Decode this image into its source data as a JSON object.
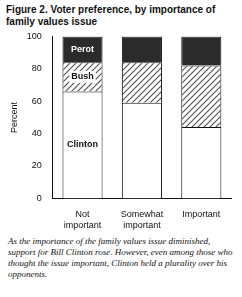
{
  "chart_data": {
    "type": "bar",
    "title": "Figure 2. Voter preference, by importance of family values issue",
    "y_label": "Percent",
    "caption": "As the importance of the family values issue diminished, support for Bill Clinton rose. However, even among those who thought the issue important, Clinton held a plurality over his opponents.",
    "categories": [
      "Not important",
      "Somewhat important",
      "Important"
    ],
    "series": [
      {
        "name": "Clinton",
        "color": "#ffffff",
        "values": [
          66,
          59,
          44
        ]
      },
      {
        "name": "Bush",
        "color": "#555555",
        "values": [
          18,
          25,
          38
        ]
      },
      {
        "name": "Perot",
        "color": "#2b2b2b",
        "values": [
          16,
          16,
          18
        ]
      }
    ],
    "stacked": true,
    "ylim": [
      0,
      100
    ],
    "yticks": [
      0,
      20,
      40,
      60,
      80,
      100
    ],
    "grid": false
  }
}
